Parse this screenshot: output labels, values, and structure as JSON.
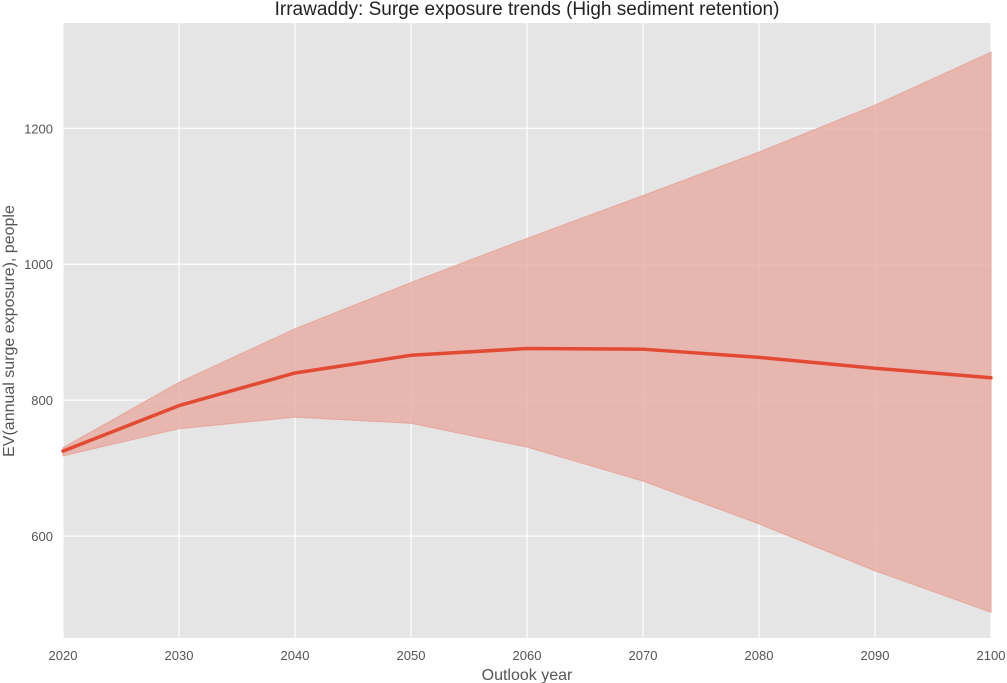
{
  "chart_data": {
    "type": "line",
    "title": "Irrawaddy: Surge exposure trends (High sediment retention)",
    "xlabel": "Outlook year",
    "ylabel": "EV(annual surge exposure), people",
    "xlim": [
      2020,
      2100
    ],
    "ylim": [
      450,
      1355
    ],
    "xticks": [
      2020,
      2030,
      2040,
      2050,
      2060,
      2070,
      2080,
      2090,
      2100
    ],
    "yticks": [
      600,
      800,
      1000,
      1200
    ],
    "grid": true,
    "legend": "none",
    "x": [
      2020,
      2030,
      2040,
      2050,
      2060,
      2070,
      2080,
      2090,
      2100
    ],
    "series": [
      {
        "values": [
          725,
          792,
          840,
          866,
          876,
          875,
          863,
          847,
          833
        ],
        "band_upper": [
          730,
          826,
          905,
          973,
          1038,
          1101,
          1165,
          1234,
          1312
        ],
        "band_lower": [
          718,
          758,
          775,
          766,
          731,
          681,
          618,
          549,
          488
        ],
        "color": "#e24a33",
        "band_color": "#e6a69c"
      }
    ],
    "background_color": "#e5e5e5",
    "grid_color": "#ffffff"
  }
}
